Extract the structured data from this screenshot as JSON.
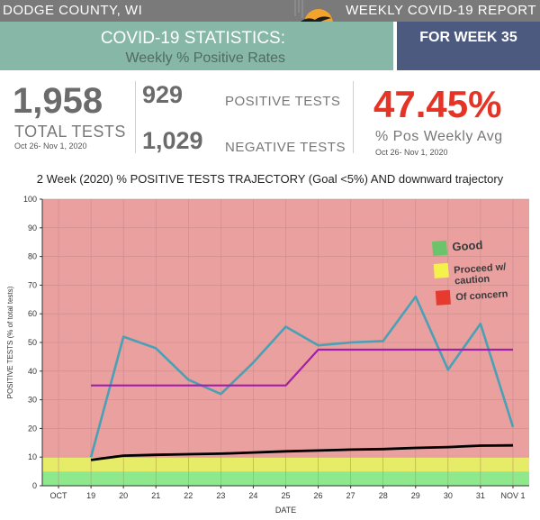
{
  "header": {
    "county": "DODGE COUNTY, WI",
    "report": "WEEKLY COVID-19 REPORT",
    "title": "COVID-19 STATISTICS:",
    "subtitle": "Weekly % Positive Rates",
    "week": "FOR WEEK 35"
  },
  "stats": {
    "total_tests": "1,958",
    "total_label": "TOTAL TESTS",
    "total_dates": "Oct 26- Nov 1, 2020",
    "positive_tests": "929",
    "positive_label": "POSITIVE TESTS",
    "negative_tests": "1,029",
    "negative_label": "NEGATIVE TESTS",
    "pos_pct": "47.45%",
    "pos_label": "% Pos Weekly Avg",
    "pos_dates": "Oct 26- Nov 1, 2020"
  },
  "colors": {
    "concern": "#e9a09f",
    "caution": "#e6ec68",
    "good": "#8ee98c",
    "daily": "#4aa0b4",
    "weekly_avg": "#a020a8",
    "goal": "#000000",
    "accent": "#e53326",
    "header_green": "#87b7a6",
    "header_blue": "#4b5a7e"
  },
  "chart_data": {
    "type": "line",
    "title": "2 Week (2020) % POSITIVE TESTS TRAJECTORY (Goal <5%) AND downward trajectory",
    "xlabel": "DATE",
    "ylabel": "POSITIVE TESTS (% of total tests)",
    "categories": [
      "OCT",
      "19",
      "20",
      "21",
      "22",
      "23",
      "24",
      "25",
      "26",
      "27",
      "28",
      "29",
      "30",
      "31",
      "NOV 1"
    ],
    "ylim": [
      0,
      100
    ],
    "yticks": [
      0,
      10,
      20,
      30,
      40,
      50,
      60,
      70,
      80,
      90,
      100
    ],
    "bands": [
      {
        "label": "Good",
        "from": 0,
        "to": 5,
        "color": "#8ee98c"
      },
      {
        "label": "Proceed w/ caution",
        "from": 5,
        "to": 10,
        "color": "#e6ec68"
      },
      {
        "label": "Of concern",
        "from": 10,
        "to": 100,
        "color": "#e9a09f"
      }
    ],
    "legend": [
      {
        "label": "Good",
        "color": "#6cc46a"
      },
      {
        "label": "Proceed w/ caution",
        "color": "#f2f24a"
      },
      {
        "label": "Of concern",
        "color": "#e63a2e"
      }
    ],
    "legend_position": "right",
    "grid": true,
    "series": [
      {
        "color": "#4aa0b4",
        "x": [
          "19",
          "20",
          "21",
          "22",
          "23",
          "24",
          "25",
          "26",
          "27",
          "28",
          "29",
          "30",
          "31",
          "NOV 1"
        ],
        "values": [
          10,
          52,
          48,
          37,
          32,
          43,
          55.5,
          49,
          50,
          50.5,
          66,
          40.5,
          56.5,
          20.5
        ]
      },
      {
        "color": "#a020a8",
        "x": [
          "19",
          "20",
          "21",
          "22",
          "23",
          "24",
          "25",
          "26",
          "27",
          "28",
          "29",
          "30",
          "31",
          "NOV 1"
        ],
        "values": [
          35,
          35,
          35,
          35,
          35,
          35,
          35,
          47.5,
          47.5,
          47.5,
          47.5,
          47.5,
          47.5,
          47.5
        ]
      },
      {
        "color": "#000000",
        "x": [
          "19",
          "20",
          "21",
          "22",
          "23",
          "24",
          "25",
          "26",
          "27",
          "28",
          "29",
          "30",
          "31",
          "NOV 1"
        ],
        "values": [
          9,
          10.5,
          10.8,
          11,
          11.2,
          11.6,
          12,
          12.3,
          12.6,
          12.8,
          13.2,
          13.5,
          14,
          14.1
        ]
      }
    ]
  }
}
